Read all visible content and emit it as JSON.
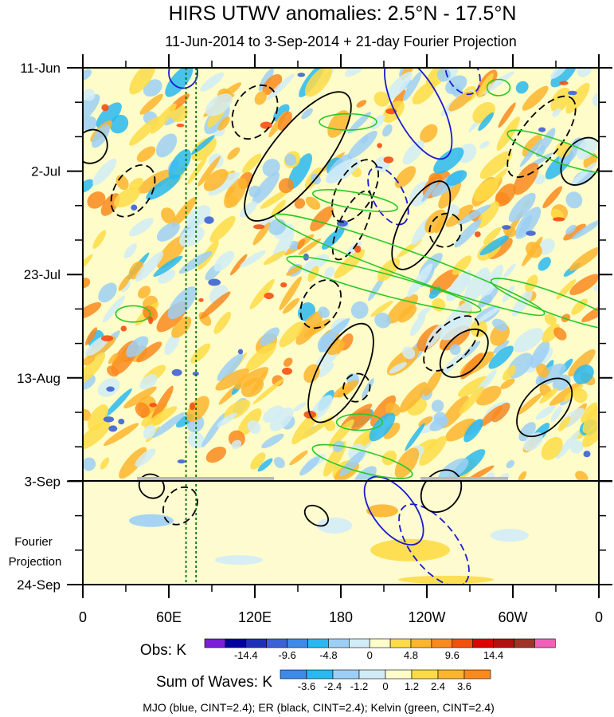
{
  "chart_data": {
    "type": "heatmap",
    "title": "HIRS UTWV anomalies: 2.5°N - 17.5°N",
    "subtitle": "11-Jun-2014 to 3-Sep-2014 + 21-day Fourier Projection",
    "y_axis": {
      "tick_labels": [
        "11-Jun",
        "2-Jul",
        "23-Jul",
        "13-Aug",
        "3-Sep",
        "24-Sep"
      ],
      "tick_days": [
        0,
        21,
        42,
        63,
        84,
        105
      ],
      "range_days": [
        0,
        105
      ]
    },
    "x_axis": {
      "tick_labels": [
        "0",
        "60E",
        "120E",
        "180",
        "120W",
        "60W",
        "0"
      ],
      "tick_lon": [
        0,
        60,
        120,
        180,
        240,
        300,
        360
      ],
      "range_lon": [
        0,
        360
      ]
    },
    "projection_start_day": 84,
    "projection_label": [
      "Fourier",
      "Projection"
    ],
    "reference_lines_lon": [
      72,
      79
    ],
    "obs_legend": {
      "title": "Obs: K",
      "colors": [
        "#7c1ddc",
        "#0000a0",
        "#1e2fb8",
        "#3b62d6",
        "#3d8ae8",
        "#29b8f0",
        "#9ccff5",
        "#d1ecf7",
        "#fefcc8",
        "#fedc46",
        "#fdb52e",
        "#f98a1e",
        "#f54f10",
        "#e00000",
        "#b40f0f",
        "#a03226",
        "#f060b8"
      ],
      "labels": [
        "-14.4",
        "-9.6",
        "-4.8",
        "0",
        "4.8",
        "9.6",
        "14.4"
      ]
    },
    "waves_legend": {
      "title": "Sum of Waves: K",
      "colors": [
        "#3d8ae8",
        "#29b8f0",
        "#9ccff5",
        "#d1ecf7",
        "#fefcc8",
        "#fedc46",
        "#fdb52e",
        "#f98a1e"
      ],
      "labels": [
        "-3.6",
        "-2.4",
        "-1.2",
        "0",
        "1.2",
        "2.4",
        "3.6"
      ]
    },
    "contour_legend": "MJO (blue, CINT=2.4); ER (black, CINT=2.4); Kelvin (green, CINT=2.4)",
    "series": [
      {
        "name": "MJO",
        "color": "#1a1ad0",
        "ellipses": [
          {
            "lon": 70,
            "day": 1,
            "w": 10,
            "h": 5,
            "angle": 0,
            "dash": false
          },
          {
            "lon": 234,
            "day": 8,
            "w": 40,
            "h": 8,
            "angle": 62,
            "dash": false
          },
          {
            "lon": 265,
            "day": 1,
            "w": 16,
            "h": 5,
            "angle": 62,
            "dash": true
          },
          {
            "lon": 213,
            "day": 26,
            "w": 22,
            "h": 5,
            "angle": 62,
            "dash": true
          },
          {
            "lon": 217,
            "day": 90,
            "w": 28,
            "h": 7,
            "angle": 52,
            "dash": false
          },
          {
            "lon": 245,
            "day": 97,
            "w": 34,
            "h": 8,
            "angle": 52,
            "dash": true
          }
        ]
      },
      {
        "name": "ER",
        "color": "#000000",
        "ellipses": [
          {
            "lon": 6,
            "day": 16,
            "w": 12,
            "h": 5,
            "angle": -60,
            "dash": false
          },
          {
            "lon": 120,
            "day": 9,
            "w": 20,
            "h": 7,
            "angle": -60,
            "dash": true
          },
          {
            "lon": 35,
            "day": 25,
            "w": 20,
            "h": 6,
            "angle": -56,
            "dash": true
          },
          {
            "lon": 150,
            "day": 18,
            "w": 55,
            "h": 10,
            "angle": -52,
            "dash": false
          },
          {
            "lon": 190,
            "day": 25,
            "w": 24,
            "h": 6,
            "angle": -60,
            "dash": true
          },
          {
            "lon": 188,
            "day": 32,
            "w": 26,
            "h": 4,
            "angle": -65,
            "dash": true
          },
          {
            "lon": 236,
            "day": 32,
            "w": 34,
            "h": 7,
            "angle": -62,
            "dash": false
          },
          {
            "lon": 253,
            "day": 33,
            "w": 12,
            "h": 5,
            "angle": -60,
            "dash": true
          },
          {
            "lon": 166,
            "day": 48,
            "w": 18,
            "h": 6,
            "angle": -60,
            "dash": true
          },
          {
            "lon": 180,
            "day": 62,
            "w": 38,
            "h": 8,
            "angle": -62,
            "dash": false
          },
          {
            "lon": 191,
            "day": 65,
            "w": 10,
            "h": 4,
            "angle": -60,
            "dash": true
          },
          {
            "lon": 257,
            "day": 56,
            "w": 24,
            "h": 6,
            "angle": -45,
            "dash": true
          },
          {
            "lon": 266,
            "day": 58,
            "w": 20,
            "h": 6,
            "angle": -45,
            "dash": false
          },
          {
            "lon": 320,
            "day": 14,
            "w": 34,
            "h": 7,
            "angle": -52,
            "dash": true
          },
          {
            "lon": 348,
            "day": 19,
            "w": 18,
            "h": 6,
            "angle": -56,
            "dash": false
          },
          {
            "lon": 322,
            "day": 69,
            "w": 24,
            "h": 7,
            "angle": -48,
            "dash": false
          },
          {
            "lon": 48,
            "day": 85,
            "w": 8,
            "h": 4,
            "angle": -55,
            "dash": false
          },
          {
            "lon": 68,
            "day": 89,
            "w": 14,
            "h": 5,
            "angle": -55,
            "dash": true
          },
          {
            "lon": 163,
            "day": 91,
            "w": 6,
            "h": 4,
            "angle": -55,
            "dash": false
          },
          {
            "lon": 250,
            "day": 86,
            "w": 16,
            "h": 6,
            "angle": -50,
            "dash": false
          }
        ]
      },
      {
        "name": "Kelvin",
        "color": "#28c828",
        "ellipses": [
          {
            "lon": 185,
            "day": 11,
            "w": 20,
            "h": 2,
            "angle": 0,
            "dash": false
          },
          {
            "lon": 190,
            "day": 27,
            "w": 30,
            "h": 2,
            "angle": 10,
            "dash": false
          },
          {
            "lon": 228,
            "day": 40,
            "w": 100,
            "h": 4,
            "angle": 20,
            "dash": false
          },
          {
            "lon": 210,
            "day": 44,
            "w": 70,
            "h": 3,
            "angle": 15,
            "dash": false
          },
          {
            "lon": 332,
            "day": 17,
            "w": 38,
            "h": 3,
            "angle": 20,
            "dash": false
          },
          {
            "lon": 330,
            "day": 48,
            "w": 48,
            "h": 3,
            "angle": 20,
            "dash": false
          },
          {
            "lon": 195,
            "day": 80,
            "w": 36,
            "h": 3,
            "angle": 15,
            "dash": false
          },
          {
            "lon": 193,
            "day": 72,
            "w": 16,
            "h": 2,
            "angle": 0,
            "dash": false
          },
          {
            "lon": 35,
            "day": 50,
            "w": 12,
            "h": 2,
            "angle": 0,
            "dash": false
          },
          {
            "lon": 290,
            "day": 4,
            "w": 8,
            "h": 2,
            "angle": 0,
            "dash": false
          }
        ]
      }
    ]
  }
}
